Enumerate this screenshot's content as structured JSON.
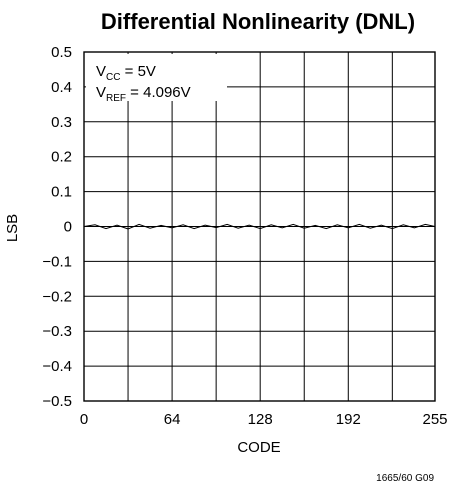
{
  "chart_data": {
    "type": "line",
    "title": "Differential Nonlinearity (DNL)",
    "xlabel": "CODE",
    "ylabel": "LSB",
    "xlim": [
      0,
      255
    ],
    "ylim": [
      -0.5,
      0.5
    ],
    "x_ticks": [
      0,
      64,
      128,
      192,
      255
    ],
    "x_tick_labels": [
      "0",
      "64",
      "128",
      "192",
      "255"
    ],
    "y_ticks": [
      0.5,
      0.4,
      0.3,
      0.2,
      0.1,
      0,
      -0.1,
      -0.2,
      -0.3,
      -0.4,
      -0.5
    ],
    "y_tick_labels": [
      "0.5",
      "0.4",
      "0.3",
      "0.2",
      "0.1",
      "0",
      "−0.1",
      "−0.2",
      "−0.3",
      "−0.4",
      "−0.5"
    ],
    "x_grid": [
      0,
      32,
      64,
      96,
      128,
      160,
      192,
      224,
      255
    ],
    "grid": true,
    "series": [
      {
        "color": "#000000",
        "x": [
          0,
          8,
          16,
          24,
          32,
          40,
          48,
          56,
          64,
          72,
          80,
          88,
          96,
          104,
          112,
          120,
          128,
          136,
          144,
          152,
          160,
          168,
          176,
          184,
          192,
          200,
          208,
          216,
          224,
          232,
          240,
          248,
          255
        ],
        "values": [
          0.0,
          0.005,
          -0.006,
          0.004,
          -0.007,
          0.006,
          -0.005,
          0.003,
          -0.004,
          0.005,
          -0.006,
          0.004,
          -0.003,
          0.006,
          -0.005,
          0.004,
          -0.006,
          0.005,
          -0.004,
          0.006,
          -0.005,
          0.003,
          -0.006,
          0.005,
          -0.004,
          0.006,
          -0.005,
          0.004,
          -0.006,
          0.005,
          -0.004,
          0.006,
          0.0
        ]
      }
    ],
    "annotations": {
      "line1_main": "V",
      "line1_sub": "CC",
      "line1_rest": " = 5V",
      "line2_main": "V",
      "line2_sub": "REF",
      "line2_rest": " = 4.096V"
    },
    "footnote": "1665/60 G09"
  }
}
